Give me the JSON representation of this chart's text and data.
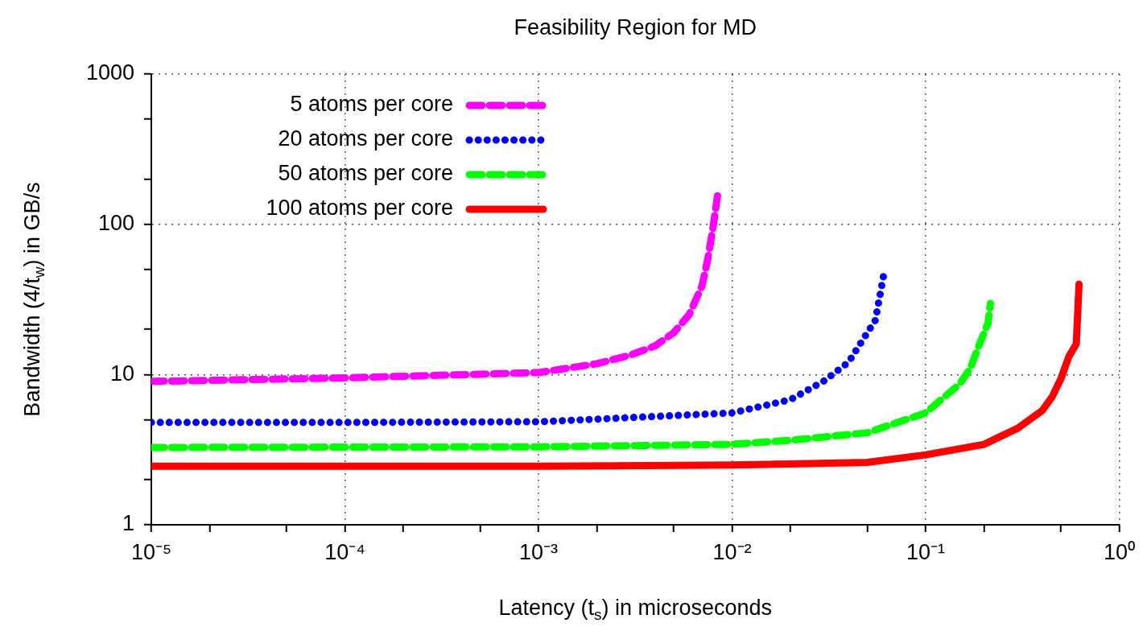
{
  "chart_data": {
    "type": "line",
    "title": "Feasibility Region for MD",
    "xlabel": "Latency (t$_{s}$) in microseconds",
    "ylabel": "Bandwidth (4/t$_{w}$) in GB/s",
    "log": "xy",
    "grid": true,
    "legend": "top left",
    "marker": "none",
    "xlim": [
      1e-05,
      1
    ],
    "ylim": [
      1,
      1000
    ],
    "xticks": [
      {
        "value": 1e-05,
        "label": "10⁻⁵"
      },
      {
        "value": 2e-05,
        "label": null
      },
      {
        "value": 5e-05,
        "label": null
      },
      {
        "value": 0.0001,
        "label": "10⁻⁴"
      },
      {
        "value": 0.0002,
        "label": null
      },
      {
        "value": 0.0005,
        "label": null
      },
      {
        "value": 0.001,
        "label": "10⁻³"
      },
      {
        "value": 0.002,
        "label": null
      },
      {
        "value": 0.005,
        "label": null
      },
      {
        "value": 0.01,
        "label": "10⁻²"
      },
      {
        "value": 0.02,
        "label": null
      },
      {
        "value": 0.05,
        "label": null
      },
      {
        "value": 0.1,
        "label": "10⁻¹"
      },
      {
        "value": 0.2,
        "label": null
      },
      {
        "value": 0.5,
        "label": null
      },
      {
        "value": 1,
        "label": "10⁰"
      }
    ],
    "yticks": [
      1,
      {
        "value": 2,
        "label": null
      },
      {
        "value": 5,
        "label": null
      },
      10,
      {
        "value": 20,
        "label": null
      },
      {
        "value": 50,
        "label": null
      },
      100,
      {
        "value": 200,
        "label": null
      },
      {
        "value": 500,
        "label": null
      },
      1000
    ],
    "series": [
      {
        "name": "5 atoms per core",
        "color": "#ff00ff",
        "line_style": "dashed",
        "x": [
          1e-05,
          0.0001,
          0.001,
          0.002,
          0.003,
          0.004,
          0.005,
          0.006,
          0.007,
          0.0075,
          0.008,
          0.0085
        ],
        "values": [
          9,
          9.5,
          10.3,
          11.8,
          13.5,
          15.5,
          19,
          25,
          39,
          59,
          98,
          171
        ]
      },
      {
        "name": "20 atoms per core",
        "color": "#0000ff",
        "line_style": "dotted",
        "x": [
          1e-05,
          0.0001,
          0.001,
          0.01,
          0.02,
          0.03,
          0.04,
          0.05,
          0.055,
          0.0607
        ],
        "values": [
          4.8,
          4.8,
          4.85,
          5.55,
          6.8,
          9.1,
          12.1,
          19,
          23,
          46
        ]
      },
      {
        "name": "50 atoms per core",
        "color": "#00ff00",
        "line_style": "dashed",
        "x": [
          1e-05,
          0.001,
          0.01,
          0.02,
          0.05,
          0.1,
          0.12,
          0.15,
          0.17,
          0.19,
          0.21,
          0.216
        ],
        "values": [
          3.27,
          3.3,
          3.43,
          3.65,
          4.1,
          5.55,
          6.8,
          8.65,
          11,
          16,
          22,
          29.7
        ]
      },
      {
        "name": "100 atoms per core",
        "color": "#ff0000",
        "line_style": "solid",
        "x": [
          1e-05,
          0.001,
          0.01,
          0.05,
          0.1,
          0.2,
          0.3,
          0.4,
          0.45,
          0.5,
          0.55,
          0.6,
          0.62
        ],
        "values": [
          2.45,
          2.45,
          2.5,
          2.6,
          2.92,
          3.43,
          4.4,
          5.76,
          7.1,
          9.4,
          13.2,
          16,
          40
        ]
      }
    ]
  }
}
